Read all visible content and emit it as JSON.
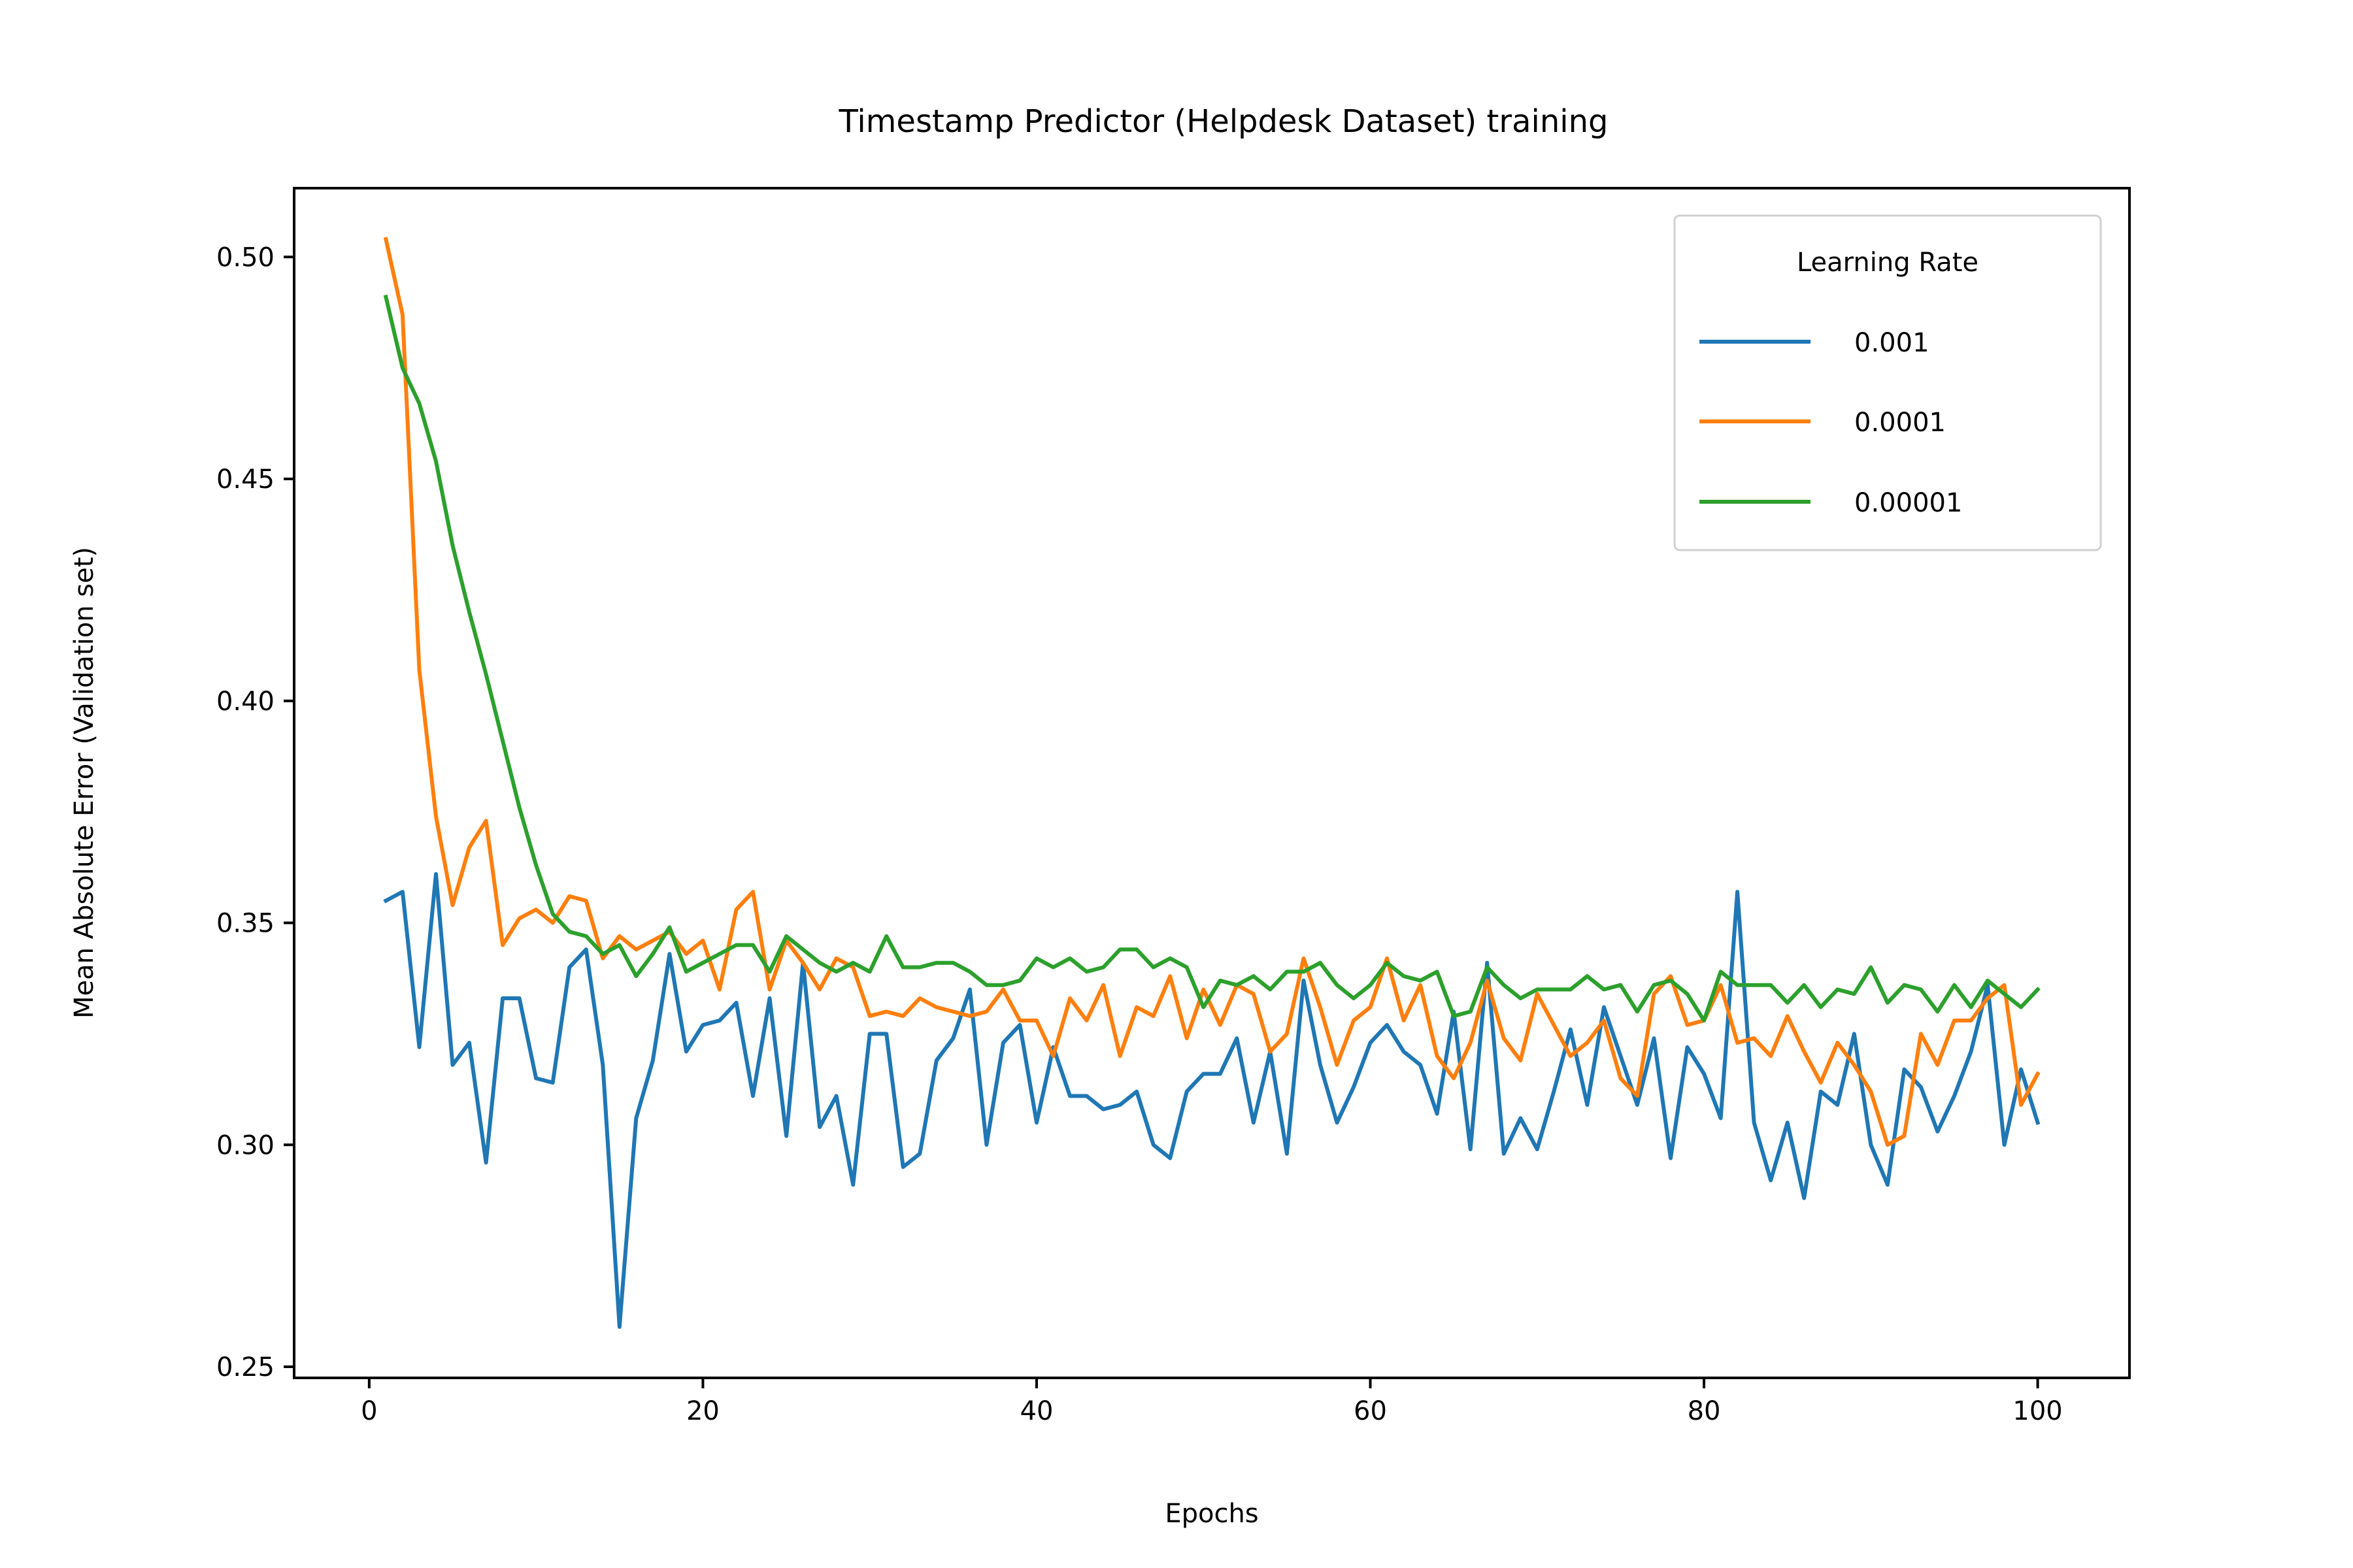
{
  "chart_data": {
    "type": "line",
    "title": "Timestamp Predictor (Helpdesk Dataset) training",
    "xlabel": "Epochs",
    "ylabel": "Mean Absolute Error (Validation set)",
    "xlim": [
      -4.5,
      105.5
    ],
    "ylim": [
      0.2475,
      0.5155
    ],
    "xticks": [
      0,
      20,
      40,
      60,
      80,
      100
    ],
    "xtick_labels": [
      "0",
      "20",
      "40",
      "60",
      "80",
      "100"
    ],
    "yticks": [
      0.25,
      0.3,
      0.35,
      0.4,
      0.45,
      0.5
    ],
    "ytick_labels": [
      "0.25",
      "0.30",
      "0.35",
      "0.40",
      "0.45",
      "0.50"
    ],
    "grid": false,
    "legend": {
      "title": "Learning Rate",
      "position": "top-right"
    },
    "x": [
      1,
      2,
      3,
      4,
      5,
      6,
      7,
      8,
      9,
      10,
      11,
      12,
      13,
      14,
      15,
      16,
      17,
      18,
      19,
      20,
      21,
      22,
      23,
      24,
      25,
      26,
      27,
      28,
      29,
      30,
      31,
      32,
      33,
      34,
      35,
      36,
      37,
      38,
      39,
      40,
      41,
      42,
      43,
      44,
      45,
      46,
      47,
      48,
      49,
      50,
      51,
      52,
      53,
      54,
      55,
      56,
      57,
      58,
      59,
      60,
      61,
      62,
      63,
      64,
      65,
      66,
      67,
      68,
      69,
      70,
      71,
      72,
      73,
      74,
      75,
      76,
      77,
      78,
      79,
      80,
      81,
      82,
      83,
      84,
      85,
      86,
      87,
      88,
      89,
      90,
      91,
      92,
      93,
      94,
      95,
      96,
      97,
      98,
      99,
      100
    ],
    "series": [
      {
        "name": "0.001",
        "color": "#1f77b4",
        "values": [
          0.355,
          0.357,
          0.322,
          0.361,
          0.318,
          0.323,
          0.296,
          0.333,
          0.333,
          0.315,
          0.314,
          0.34,
          0.344,
          0.318,
          0.259,
          0.306,
          0.319,
          0.343,
          0.321,
          0.327,
          0.328,
          0.332,
          0.311,
          0.333,
          0.302,
          0.341,
          0.304,
          0.311,
          0.291,
          0.325,
          0.325,
          0.295,
          0.298,
          0.319,
          0.324,
          0.335,
          0.3,
          0.323,
          0.327,
          0.305,
          0.322,
          0.311,
          0.311,
          0.308,
          0.309,
          0.312,
          0.3,
          0.297,
          0.312,
          0.316,
          0.316,
          0.324,
          0.305,
          0.321,
          0.298,
          0.337,
          0.318,
          0.305,
          0.313,
          0.323,
          0.327,
          0.321,
          0.318,
          0.307,
          0.33,
          0.299,
          0.341,
          0.298,
          0.306,
          0.299,
          0.312,
          0.326,
          0.309,
          0.331,
          0.32,
          0.309,
          0.324,
          0.297,
          0.322,
          0.316,
          0.306,
          0.357,
          0.305,
          0.292,
          0.305,
          0.288,
          0.312,
          0.309,
          0.325,
          0.3,
          0.291,
          0.317,
          0.313,
          0.303,
          0.311,
          0.321,
          0.336,
          0.3,
          0.317,
          0.305
        ]
      },
      {
        "name": "0.0001",
        "color": "#ff7f0e",
        "values": [
          0.504,
          0.487,
          0.407,
          0.374,
          0.354,
          0.367,
          0.373,
          0.345,
          0.351,
          0.353,
          0.35,
          0.356,
          0.355,
          0.342,
          0.347,
          0.344,
          0.346,
          0.348,
          0.343,
          0.346,
          0.335,
          0.353,
          0.357,
          0.335,
          0.346,
          0.341,
          0.335,
          0.342,
          0.34,
          0.329,
          0.33,
          0.329,
          0.333,
          0.331,
          0.33,
          0.329,
          0.33,
          0.335,
          0.328,
          0.328,
          0.32,
          0.333,
          0.328,
          0.336,
          0.32,
          0.331,
          0.329,
          0.338,
          0.324,
          0.335,
          0.327,
          0.336,
          0.334,
          0.321,
          0.325,
          0.342,
          0.331,
          0.318,
          0.328,
          0.331,
          0.342,
          0.328,
          0.336,
          0.32,
          0.315,
          0.323,
          0.337,
          0.324,
          0.319,
          0.334,
          0.327,
          0.32,
          0.323,
          0.328,
          0.315,
          0.311,
          0.334,
          0.338,
          0.327,
          0.328,
          0.336,
          0.323,
          0.324,
          0.32,
          0.329,
          0.321,
          0.314,
          0.323,
          0.318,
          0.312,
          0.3,
          0.302,
          0.325,
          0.318,
          0.328,
          0.328,
          0.333,
          0.336,
          0.309,
          0.316
        ]
      },
      {
        "name": "0.00001",
        "color": "#2ca02c",
        "values": [
          0.491,
          0.475,
          0.467,
          0.454,
          0.435,
          0.42,
          0.406,
          0.391,
          0.376,
          0.363,
          0.352,
          0.348,
          0.347,
          0.343,
          0.345,
          0.338,
          0.343,
          0.349,
          0.339,
          0.341,
          0.343,
          0.345,
          0.345,
          0.339,
          0.347,
          0.344,
          0.341,
          0.339,
          0.341,
          0.339,
          0.347,
          0.34,
          0.34,
          0.341,
          0.341,
          0.339,
          0.336,
          0.336,
          0.337,
          0.342,
          0.34,
          0.342,
          0.339,
          0.34,
          0.344,
          0.344,
          0.34,
          0.342,
          0.34,
          0.331,
          0.337,
          0.336,
          0.338,
          0.335,
          0.339,
          0.339,
          0.341,
          0.336,
          0.333,
          0.336,
          0.341,
          0.338,
          0.337,
          0.339,
          0.329,
          0.33,
          0.34,
          0.336,
          0.333,
          0.335,
          0.335,
          0.335,
          0.338,
          0.335,
          0.336,
          0.33,
          0.336,
          0.337,
          0.334,
          0.328,
          0.339,
          0.336,
          0.336,
          0.336,
          0.332,
          0.336,
          0.331,
          0.335,
          0.334,
          0.34,
          0.332,
          0.336,
          0.335,
          0.33,
          0.336,
          0.331,
          0.337,
          0.334,
          0.331,
          0.335
        ]
      }
    ]
  }
}
